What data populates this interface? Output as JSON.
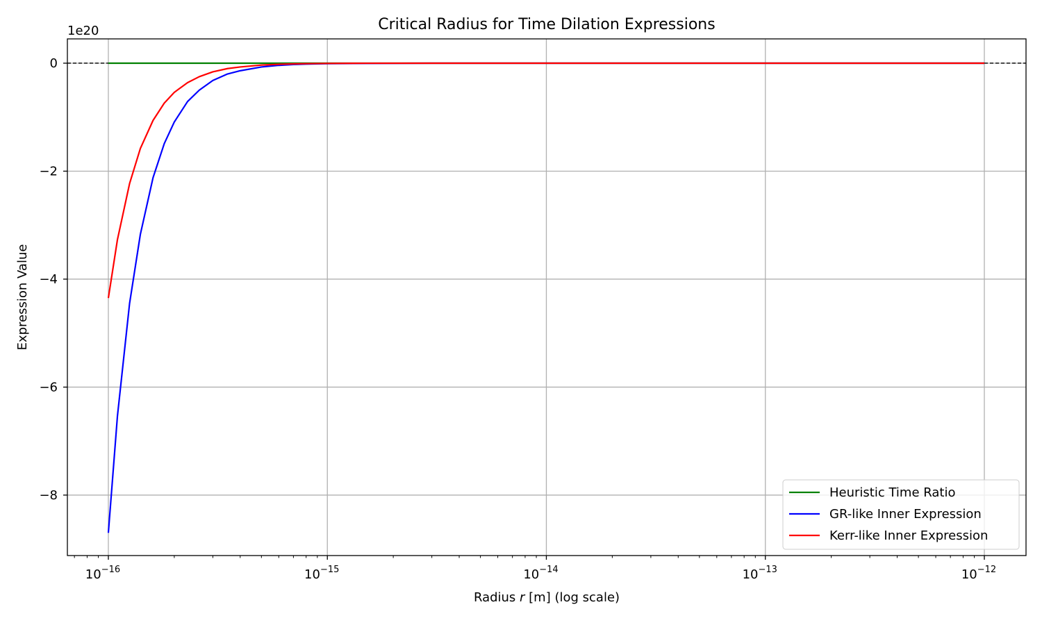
{
  "chart_data": {
    "type": "line",
    "title": "Critical Radius for Time Dilation Expressions",
    "xlabel": "Radius r [m] (log scale)",
    "xlabel_parts": {
      "pre": "Radius ",
      "var": "r",
      "post": " [m] (log scale)"
    },
    "ylabel": "Expression Value",
    "x_scale": "log",
    "xlim": [
      6.5e-17,
      1.55e-12
    ],
    "ylim": [
      -9.12e+20,
      4.5e+19
    ],
    "y_offset_text": "1e20",
    "y_tick_scale": 1e+20,
    "x_ticks": [
      1e-16,
      1e-15,
      1e-14,
      1e-13,
      1e-12
    ],
    "x_tick_labels": [
      {
        "base": "10",
        "exp": "−16"
      },
      {
        "base": "10",
        "exp": "−15"
      },
      {
        "base": "10",
        "exp": "−14"
      },
      {
        "base": "10",
        "exp": "−13"
      },
      {
        "base": "10",
        "exp": "−12"
      }
    ],
    "y_ticks": [
      0,
      -2e+20,
      -4e+20,
      -6e+20,
      -8e+20
    ],
    "y_tick_labels": [
      "0",
      "−2",
      "−4",
      "−6",
      "−8"
    ],
    "grid": true,
    "reference_line": {
      "y": 0,
      "style": "dashed",
      "color": "#000000"
    },
    "legend_position": "bottom-right",
    "series": [
      {
        "name": "Heuristic Time Ratio",
        "color": "#008000",
        "x": [
          1e-16,
          1e-12
        ],
        "y": [
          0,
          0
        ]
      },
      {
        "name": "GR-like Inner Expression",
        "color": "#0000ff",
        "x": [
          1e-16,
          1.1e-16,
          1.25e-16,
          1.4e-16,
          1.6e-16,
          1.8e-16,
          2e-16,
          2.3e-16,
          2.6e-16,
          3e-16,
          3.5e-16,
          4e-16,
          5e-16,
          6e-16,
          7e-16,
          8e-16,
          1e-15,
          1.5e-15,
          3e-15,
          1e-14,
          1e-13,
          1e-12
        ],
        "y": [
          -8.7e+20,
          -6.54e+20,
          -4.45e+20,
          -3.17e+20,
          -2.12e+20,
          -1.49e+20,
          -1.09e+20,
          -7.1e+19,
          -5e+19,
          -3.2e+19,
          -2e+19,
          -1.4e+19,
          -7e+18,
          -4e+18,
          -2.5e+18,
          -1.7e+18,
          -9e+17,
          -3e+17,
          0,
          0,
          0,
          0
        ]
      },
      {
        "name": "Kerr-like Inner Expression",
        "color": "#ff0000",
        "x": [
          1e-16,
          1.1e-16,
          1.25e-16,
          1.4e-16,
          1.6e-16,
          1.8e-16,
          2e-16,
          2.3e-16,
          2.6e-16,
          3e-16,
          3.5e-16,
          4e-16,
          5e-16,
          6e-16,
          7e-16,
          8e-16,
          1e-15,
          1.5e-15,
          3e-15,
          1e-14,
          1e-13,
          1e-12
        ],
        "y": [
          -4.35e+20,
          -3.27e+20,
          -2.23e+20,
          -1.58e+20,
          -1.06e+20,
          -7.4e+19,
          -5.4e+19,
          -3.6e+19,
          -2.5e+19,
          -1.6e+19,
          -1e+19,
          -7e+18,
          -3.5e+18,
          -2e+18,
          -1.3e+18,
          -9e+17,
          -4e+17,
          -1e+17,
          0,
          0,
          0,
          0
        ]
      }
    ]
  }
}
